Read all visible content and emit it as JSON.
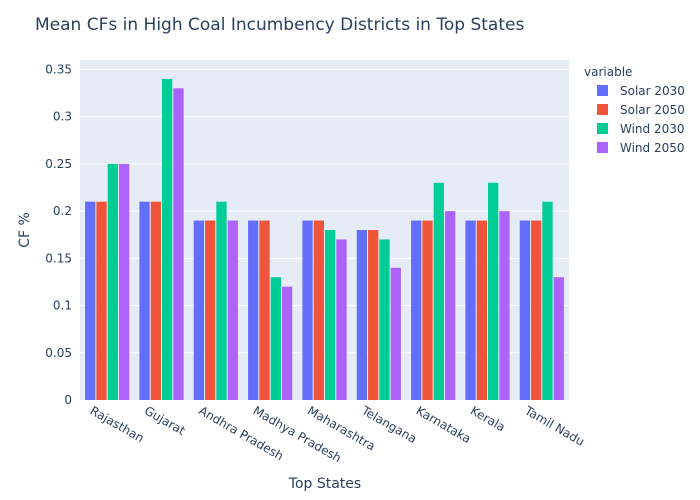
{
  "chart_data": {
    "type": "bar",
    "title": "Mean CFs in High Coal Incumbency Districts in Top States",
    "xlabel": "Top States",
    "ylabel": "CF %",
    "ylim": [
      0,
      0.36
    ],
    "yticks": [
      "0",
      "0.05",
      "0.1",
      "0.15",
      "0.2",
      "0.25",
      "0.3",
      "0.35"
    ],
    "grid": true,
    "legend_title": "variable",
    "legend_position": "right",
    "categories": [
      "Rajasthan",
      "Gujarat",
      "Andhra Pradesh",
      "Madhya Pradesh",
      "Maharashtra",
      "Telangana",
      "Karnataka",
      "Kerala",
      "Tamil Nadu"
    ],
    "series": [
      {
        "name": "Solar 2030",
        "color": "#636efa",
        "values": [
          0.21,
          0.21,
          0.19,
          0.19,
          0.19,
          0.18,
          0.19,
          0.19,
          0.19
        ]
      },
      {
        "name": "Solar 2050",
        "color": "#ef553b",
        "values": [
          0.21,
          0.21,
          0.19,
          0.19,
          0.19,
          0.18,
          0.19,
          0.19,
          0.19
        ]
      },
      {
        "name": "Wind 2030",
        "color": "#00cc96",
        "values": [
          0.25,
          0.34,
          0.21,
          0.13,
          0.18,
          0.17,
          0.23,
          0.23,
          0.21
        ]
      },
      {
        "name": "Wind 2050",
        "color": "#ab63fa",
        "values": [
          0.25,
          0.33,
          0.19,
          0.12,
          0.17,
          0.14,
          0.2,
          0.2,
          0.13
        ]
      }
    ]
  }
}
